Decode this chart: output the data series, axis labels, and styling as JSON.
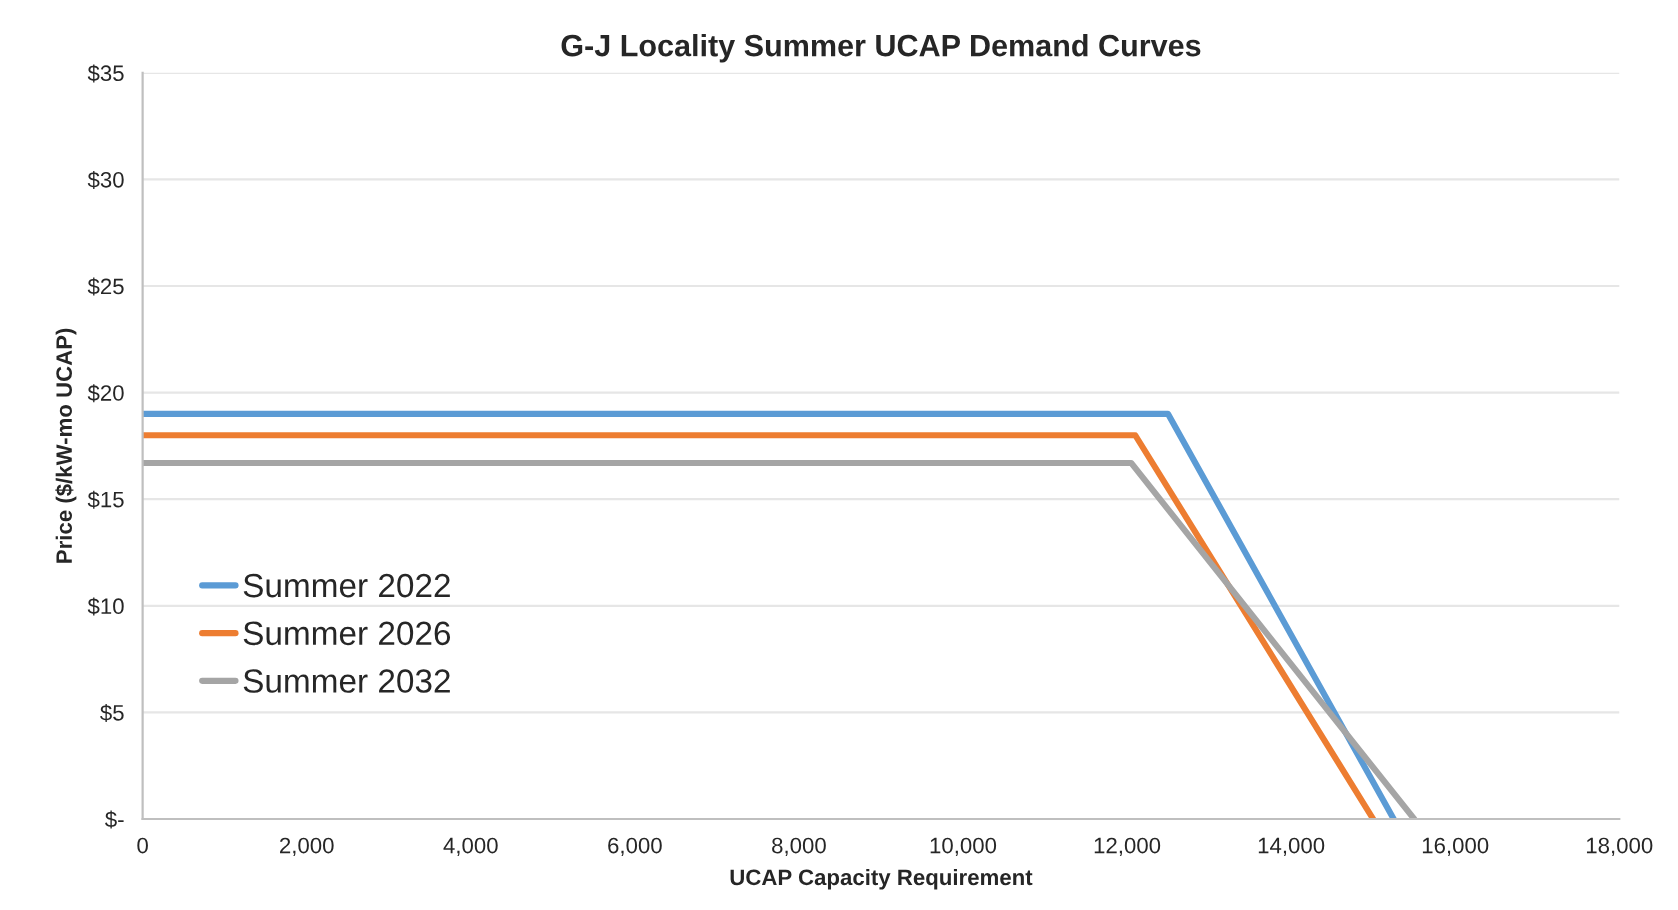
{
  "chart_data": {
    "type": "line",
    "title": "G-J Locality Summer UCAP Demand Curves",
    "xlabel": "UCAP Capacity Requirement",
    "ylabel": "Price ($/kW-mo UCAP)",
    "series": [
      {
        "name": "Summer 2022",
        "color": "#5b9bd5",
        "x": [
          0,
          12500,
          15250
        ],
        "values": [
          19.0,
          19.0,
          0
        ]
      },
      {
        "name": "Summer 2026",
        "color": "#ed7d31",
        "x": [
          0,
          12100,
          15000
        ],
        "values": [
          18.0,
          18.0,
          0
        ]
      },
      {
        "name": "Summer 2032",
        "color": "#a5a5a5",
        "x": [
          0,
          12050,
          15500
        ],
        "values": [
          16.7,
          16.7,
          0
        ]
      }
    ],
    "xlim": [
      0,
      18000
    ],
    "xticks": [
      {
        "value": 0,
        "label": "0"
      },
      {
        "value": 2000,
        "label": "2,000"
      },
      {
        "value": 4000,
        "label": "4,000"
      },
      {
        "value": 6000,
        "label": "6,000"
      },
      {
        "value": 8000,
        "label": "8,000"
      },
      {
        "value": 10000,
        "label": "10,000"
      },
      {
        "value": 12000,
        "label": "12,000"
      },
      {
        "value": 14000,
        "label": "14,000"
      },
      {
        "value": 16000,
        "label": "16,000"
      },
      {
        "value": 18000,
        "label": "18,000"
      }
    ],
    "ylim": [
      0,
      35
    ],
    "yticks": [
      {
        "value": 0,
        "label": "$-"
      },
      {
        "value": 5,
        "label": "$5"
      },
      {
        "value": 10,
        "label": "$10"
      },
      {
        "value": 15,
        "label": "$15"
      },
      {
        "value": 20,
        "label": "$20"
      },
      {
        "value": 25,
        "label": "$25"
      },
      {
        "value": 30,
        "label": "$30"
      },
      {
        "value": 35,
        "label": "$35"
      }
    ],
    "grid": "y",
    "legend": "bottom left",
    "marker": "none",
    "line_style": "solid"
  }
}
